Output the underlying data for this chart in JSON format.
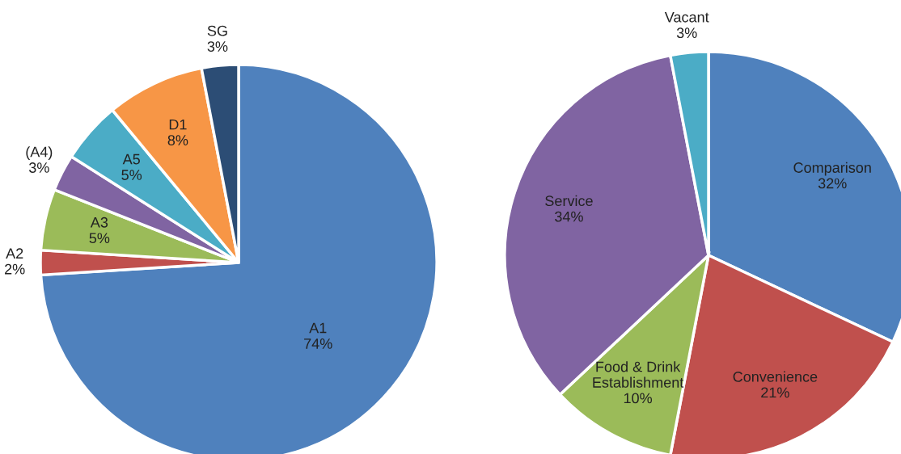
{
  "chart_data": [
    {
      "type": "pie",
      "categories": [
        "A1",
        "A2",
        "A3",
        "(A4)",
        "A5",
        "D1",
        "SG"
      ],
      "values": [
        74,
        2,
        5,
        3,
        5,
        8,
        3
      ],
      "value_labels": [
        "74%",
        "2%",
        "5%",
        "3%",
        "5%",
        "8%",
        "3%"
      ],
      "colors": [
        "#4f81bd",
        "#c0504d",
        "#9bbb59",
        "#8064a2",
        "#4bacc6",
        "#f79646",
        "#2c4d75"
      ]
    },
    {
      "type": "pie",
      "categories": [
        "Comparison",
        "Convenience",
        "Food & Drink\nEstablishment",
        "Service",
        "Vacant"
      ],
      "values": [
        32,
        21,
        10,
        34,
        3
      ],
      "value_labels": [
        "32%",
        "21%",
        "10%",
        "34%",
        "3%"
      ],
      "colors": [
        "#4f81bd",
        "#c0504d",
        "#9bbb59",
        "#8064a2",
        "#4bacc6"
      ]
    }
  ]
}
